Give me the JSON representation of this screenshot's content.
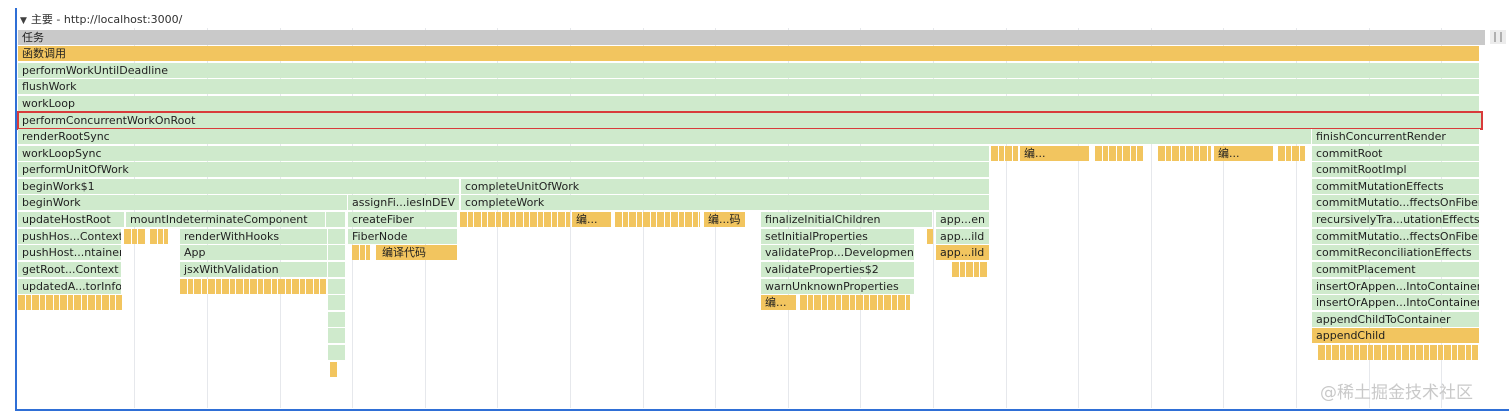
{
  "header": {
    "title": "主要 - http://localhost:3000/"
  },
  "tracks": {
    "task": "任务",
    "call": "函数调用"
  },
  "frames": {
    "performWorkUntilDeadline": "performWorkUntilDeadline",
    "flushWork": "flushWork",
    "workLoop": "workLoop",
    "performConcurrentWorkOnRoot": "performConcurrentWorkOnRoot",
    "renderRootSync": "renderRootSync",
    "finishConcurrentRender": "finishConcurrentRender",
    "workLoopSync": "workLoopSync",
    "commitRoot": "commitRoot",
    "performUnitOfWork": "performUnitOfWork",
    "commitRootImpl": "commitRootImpl",
    "beginWork1": "beginWork$1",
    "completeUnitOfWork": "completeUnitOfWork",
    "commitMutationEffects": "commitMutationEffects",
    "beginWork": "beginWork",
    "assignFiber": "assignFi...iesInDEV",
    "completeWork": "completeWork",
    "commitMutationEffectsOnFiber1": "commitMutatio...ffectsOnFiber",
    "updateHostRoot": "updateHostRoot",
    "mountIndeterminateComponent": "mountIndeterminateComponent",
    "createFiber": "createFiber",
    "finalizeInitialChildren": "finalizeInitialChildren",
    "appendAllChildren": "app...en",
    "recursivelyTraverse": "recursivelyTra...utationEffects",
    "pushHostContext": "pushHos...Context",
    "renderWithHooks": "renderWithHooks",
    "fiberNode": "FiberNode",
    "setInitialProperties": "setInitialProperties",
    "appendChild1": "app...ild",
    "commitMutationEffectsOnFiber2": "commitMutatio...ffectsOnFiber",
    "pushHostContainer": "pushHost...ntainer",
    "app": "App",
    "compileCode": "编译代码",
    "validatePropertiesDev": "validateProp...Development",
    "appendChild2": "app...ild",
    "commitReconciliationEffects": "commitReconciliationEffects",
    "getRootHostContext": "getRoot...Context",
    "jsxWithValidation": "jsxWithValidation",
    "validateProperties2": "validateProperties$2",
    "commitPlacement": "commitPlacement",
    "updatedAncestorInfo": "updatedA...torInfo",
    "warnUnknownProperties": "warnUnknownProperties",
    "insertOrAppend1": "insertOrAppen...IntoContainer",
    "compile1": "编...",
    "insertOrAppend2": "insertOrAppen...IntoContainer",
    "appendChildToContainer": "appendChildToContainer",
    "appendChild": "appendChild",
    "compile2": "编...",
    "compile3": "编...",
    "compile4": "编...",
    "compile5": "编...码"
  },
  "watermark": "@稀土掘金技术社区",
  "colors": {
    "scripting": "#f2c55f",
    "render": "#cfeacc",
    "task": "#c9c9c9",
    "selection": "#d83b3b",
    "frame_border": "#2f6fd6"
  }
}
